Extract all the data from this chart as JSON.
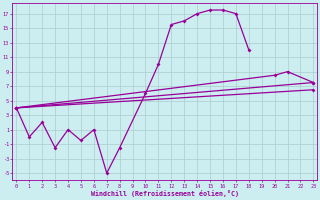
{
  "xlabel": "Windchill (Refroidissement éolien,°C)",
  "bg_color": "#cceef0",
  "grid_color": "#aacccc",
  "line_color": "#990099",
  "xticks": [
    0,
    1,
    2,
    3,
    4,
    5,
    6,
    7,
    8,
    9,
    10,
    11,
    12,
    13,
    14,
    15,
    16,
    17,
    18,
    19,
    20,
    21,
    22,
    23
  ],
  "yticks": [
    -5,
    -3,
    -1,
    1,
    3,
    5,
    7,
    9,
    11,
    13,
    15,
    17
  ],
  "line1_x": [
    0,
    1,
    2,
    3,
    4,
    5,
    6,
    7,
    8,
    10,
    11,
    12,
    13,
    14,
    15,
    16,
    17,
    18
  ],
  "line1_y": [
    4,
    0,
    2,
    -1.5,
    1,
    -0.5,
    1,
    -5,
    -1.5,
    6,
    10,
    15.5,
    16,
    17,
    17.5,
    17.5,
    17,
    12
  ],
  "line2_x": [
    0,
    23
  ],
  "line2_y": [
    4,
    7.5
  ],
  "line3_x": [
    0,
    23
  ],
  "line3_y": [
    4,
    6.5
  ],
  "line4_x": [
    0,
    20,
    21,
    23
  ],
  "line4_y": [
    4,
    8.5,
    9,
    7.5
  ],
  "xlim": [
    -0.3,
    23.3
  ],
  "ylim": [
    -6,
    18.5
  ]
}
